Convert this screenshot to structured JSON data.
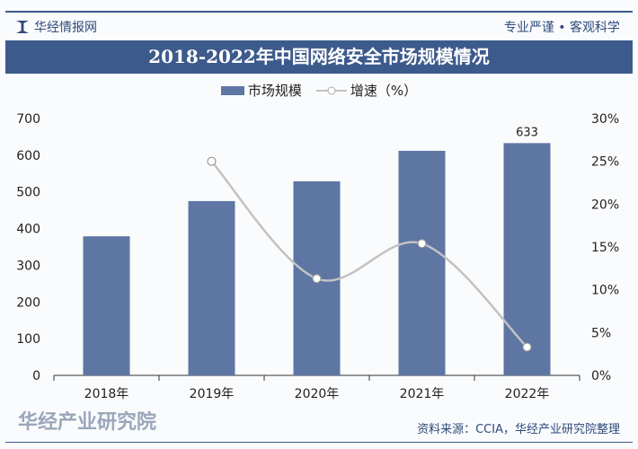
{
  "header": {
    "brand": "华经情报网",
    "slogan": "专业严谨 • 客观科学",
    "title": "2018-2022年中国网络安全市场规模情况"
  },
  "footer": {
    "source": "资料来源：CCIA，华经产业研究院整理",
    "watermark": "华经产业研究院"
  },
  "colors": {
    "bar": "#5e76a3",
    "line": "#c2c2c2",
    "title_bg": "#3d5a8c"
  },
  "chart_data": {
    "type": "bar",
    "categories": [
      "2018年",
      "2019年",
      "2020年",
      "2021年",
      "2022年"
    ],
    "series": [
      {
        "name": "市场规模",
        "type": "bar",
        "axis": "left",
        "values": [
          379,
          475,
          529,
          612,
          633
        ]
      },
      {
        "name": "增速（%）",
        "type": "line",
        "axis": "right",
        "values": [
          null,
          25.0,
          11.3,
          15.4,
          3.3
        ]
      }
    ],
    "data_labels": {
      "2022年": "633"
    },
    "ylim": [
      0,
      700
    ],
    "yticks": [
      "0",
      "100",
      "200",
      "300",
      "400",
      "500",
      "600",
      "700"
    ],
    "y2lim": [
      0,
      30
    ],
    "y2ticks": [
      "0%",
      "5%",
      "10%",
      "15%",
      "20%",
      "25%",
      "30%"
    ],
    "legend": "top",
    "grid": false
  }
}
